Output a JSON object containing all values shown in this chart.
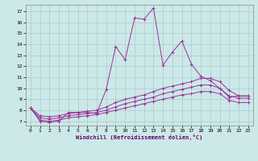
{
  "xlabel": "Windchill (Refroidissement éolien,°C)",
  "background_color": "#cce8e8",
  "grid_color": "#aacccc",
  "line_color": "#993399",
  "xlim": [
    -0.5,
    23.5
  ],
  "ylim": [
    6.6,
    17.6
  ],
  "xticks": [
    0,
    1,
    2,
    3,
    4,
    5,
    6,
    7,
    8,
    9,
    10,
    11,
    12,
    13,
    14,
    15,
    16,
    17,
    18,
    19,
    20,
    21,
    22,
    23
  ],
  "yticks": [
    7,
    8,
    9,
    10,
    11,
    12,
    13,
    14,
    15,
    16,
    17
  ],
  "lines": [
    [
      8.2,
      7.0,
      6.9,
      7.0,
      7.8,
      7.8,
      7.8,
      7.7,
      9.9,
      13.8,
      12.6,
      16.4,
      16.3,
      17.3,
      12.1,
      13.3,
      14.3,
      12.2,
      11.1,
      10.7,
      10.0,
      9.2,
      9.3,
      9.3
    ],
    [
      8.2,
      7.5,
      7.4,
      7.5,
      7.7,
      7.8,
      7.9,
      8.0,
      8.3,
      8.7,
      9.0,
      9.2,
      9.4,
      9.7,
      10.0,
      10.2,
      10.4,
      10.6,
      10.9,
      10.9,
      10.6,
      9.8,
      9.3,
      9.3
    ],
    [
      8.2,
      7.3,
      7.2,
      7.3,
      7.5,
      7.6,
      7.7,
      7.8,
      8.0,
      8.3,
      8.6,
      8.8,
      9.0,
      9.2,
      9.5,
      9.7,
      9.9,
      10.1,
      10.3,
      10.3,
      10.0,
      9.3,
      9.1,
      9.1
    ],
    [
      8.2,
      7.1,
      7.0,
      7.1,
      7.3,
      7.4,
      7.5,
      7.6,
      7.8,
      8.0,
      8.2,
      8.4,
      8.6,
      8.8,
      9.0,
      9.2,
      9.4,
      9.5,
      9.7,
      9.7,
      9.5,
      8.9,
      8.7,
      8.7
    ]
  ]
}
